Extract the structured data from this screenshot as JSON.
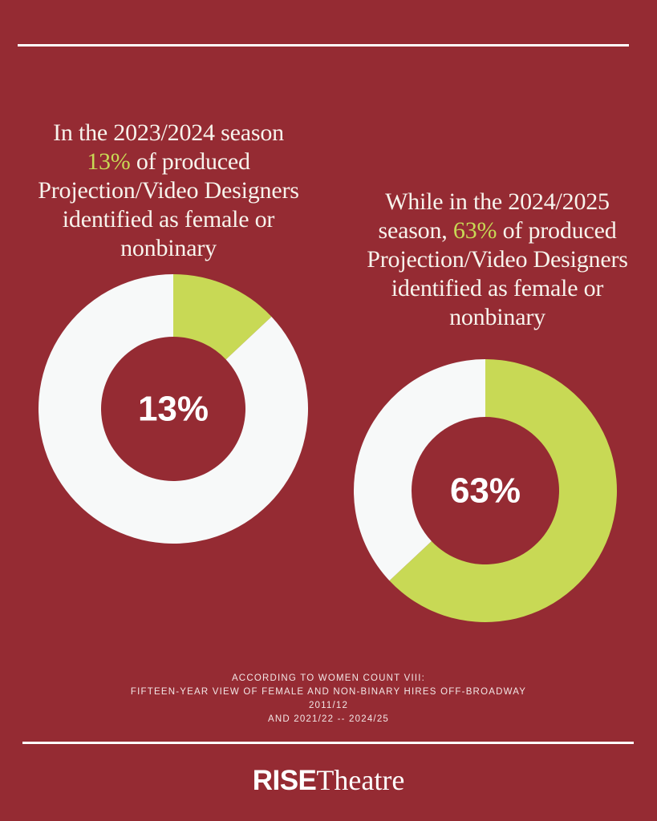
{
  "headline_left": {
    "before": "In the 2023/2024  season",
    "accent": "13%",
    "after": " of produced",
    "line3": "Projection/Video Designers",
    "line4": "identified as female or",
    "line5": "nonbinary"
  },
  "headline_right": {
    "line1": "While in the 2024/2025",
    "before": "season, ",
    "accent": "63%",
    "after": " of produced",
    "line3": "Projection/Video Designers",
    "line4": "identified as female or",
    "line5": "nonbinary"
  },
  "chart_data": [
    {
      "type": "pie",
      "variant": "donut",
      "center_label": "13%",
      "slices": [
        {
          "value": 13,
          "color": "#c8d955"
        },
        {
          "value": 87,
          "color": "#f7f9f9"
        }
      ]
    },
    {
      "type": "pie",
      "variant": "donut",
      "center_label": "63%",
      "slices": [
        {
          "value": 63,
          "color": "#c8d955"
        },
        {
          "value": 37,
          "color": "#f7f9f9"
        }
      ]
    }
  ],
  "source": {
    "line1": "ACCORDING TO WOMEN COUNT VIII:",
    "line2": "FIFTEEN-YEAR VIEW OF FEMALE AND NON-BINARY HIRES OFF-BROADWAY",
    "line3": "2011/12",
    "line4": "AND 2021/22 -- 2024/25"
  },
  "logo": {
    "part1": "RISE",
    "part2": "Theatre"
  },
  "colors": {
    "background": "#952b33",
    "accent": "#c8d955",
    "ring_base": "#f7f9f9"
  }
}
